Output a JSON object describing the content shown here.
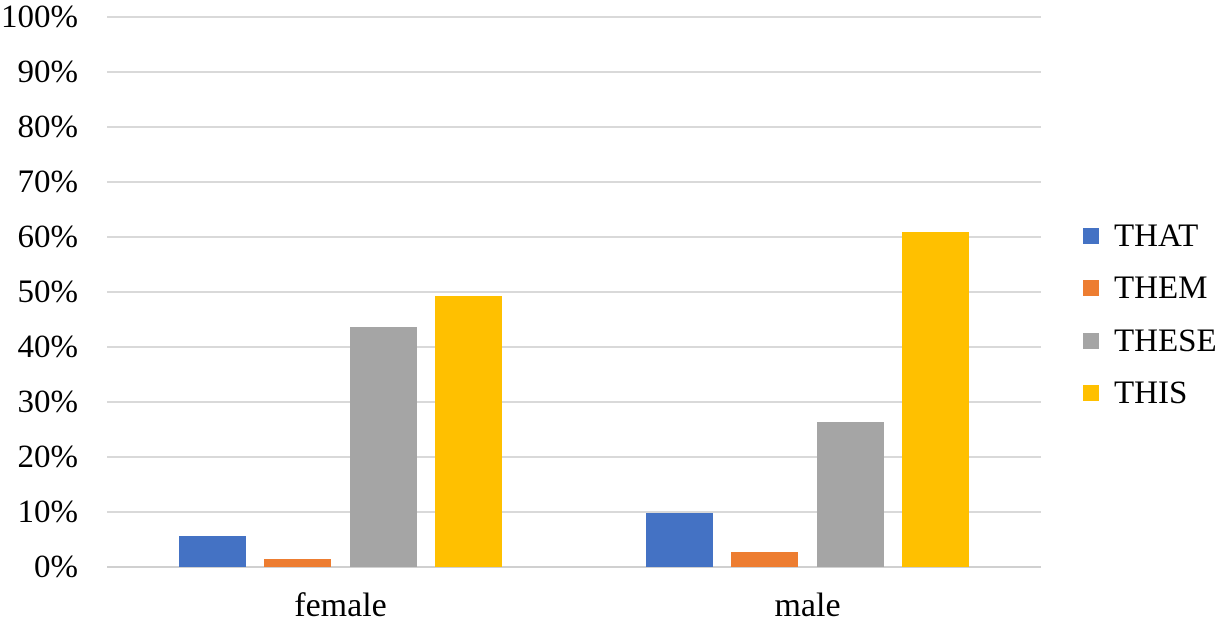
{
  "chart_data": {
    "type": "bar",
    "title": "",
    "categories": [
      "female",
      "male"
    ],
    "series": [
      {
        "name": "THAT",
        "color": "#4472C4",
        "values": [
          5.6,
          9.9
        ]
      },
      {
        "name": "THEM",
        "color": "#ED7D31",
        "values": [
          1.4,
          2.8
        ]
      },
      {
        "name": "THESE",
        "color": "#A5A5A5",
        "values": [
          43.7,
          26.3
        ]
      },
      {
        "name": "THIS",
        "color": "#FFC000",
        "values": [
          49.3,
          61.0
        ]
      }
    ],
    "y_axis": {
      "min": 0,
      "max": 100,
      "step": 10,
      "unit": "%",
      "tick_labels": [
        "0%",
        "10%",
        "20%",
        "30%",
        "40%",
        "50%",
        "60%",
        "70%",
        "80%",
        "90%",
        "100%"
      ]
    },
    "x_axis": {
      "labels": [
        "female",
        "male"
      ]
    },
    "grid": true,
    "legend_position": "right",
    "legend_entries": [
      "THAT",
      "THEM",
      "THESE",
      "THIS"
    ]
  },
  "style": {
    "background": "#FFFFFF",
    "gridline_color": "#D9D9D9",
    "axis_line_color": "#D0D0D0",
    "text_color": "#000000"
  }
}
